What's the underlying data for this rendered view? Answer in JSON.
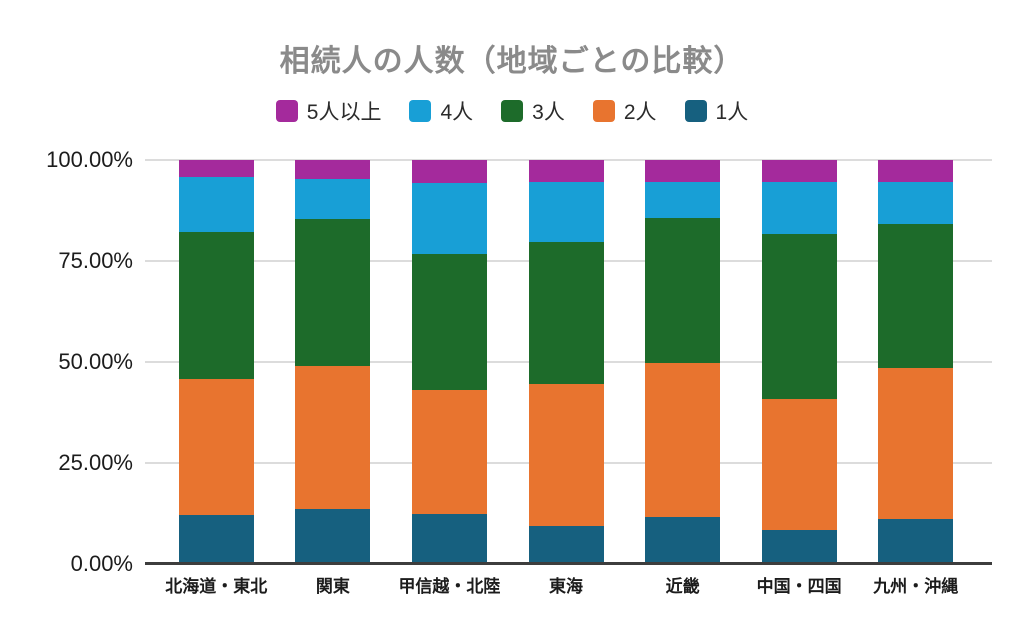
{
  "title": "相続人の人数（地域ごとの比較）",
  "chart_data": {
    "type": "bar",
    "subtype": "stacked-100-percent",
    "title": "相続人の人数（地域ごとの比較）",
    "categories": [
      "北海道・東北",
      "関東",
      "甲信越・北陸",
      "東海",
      "近畿",
      "中国・四国",
      "九州・沖縄"
    ],
    "series": [
      {
        "name": "5人以上",
        "color": "#a42a9c",
        "values": [
          4.3,
          4.8,
          5.6,
          5.5,
          5.4,
          5.4,
          5.4
        ]
      },
      {
        "name": "4人",
        "color": "#189fd6",
        "values": [
          13.5,
          9.7,
          17.7,
          14.7,
          9.0,
          13.0,
          10.4
        ]
      },
      {
        "name": "3人",
        "color": "#1d6b2a",
        "values": [
          36.4,
          36.6,
          33.6,
          35.2,
          35.8,
          40.8,
          35.8
        ]
      },
      {
        "name": "2人",
        "color": "#e8742f",
        "values": [
          33.7,
          35.3,
          30.7,
          35.2,
          38.2,
          32.5,
          37.2
        ]
      },
      {
        "name": "1人",
        "color": "#16607f",
        "values": [
          12.1,
          13.6,
          12.4,
          9.4,
          11.6,
          8.3,
          11.2
        ]
      }
    ],
    "xlabel": "",
    "ylabel": "",
    "ylim": [
      0,
      100
    ],
    "yticks": [
      {
        "value": 0,
        "label": "0.00%"
      },
      {
        "value": 25,
        "label": "25.00%"
      },
      {
        "value": 50,
        "label": "50.00%"
      },
      {
        "value": 75,
        "label": "75.00%"
      },
      {
        "value": 100,
        "label": "100.00%"
      }
    ],
    "grid": true,
    "legend_position": "top"
  },
  "colors": {
    "background": "#ffffff",
    "title_text": "#8a8a8a",
    "axis_text": "#1c1c1c",
    "gridline": "#dcdcdc",
    "axis_line": "#3d3d3d"
  }
}
